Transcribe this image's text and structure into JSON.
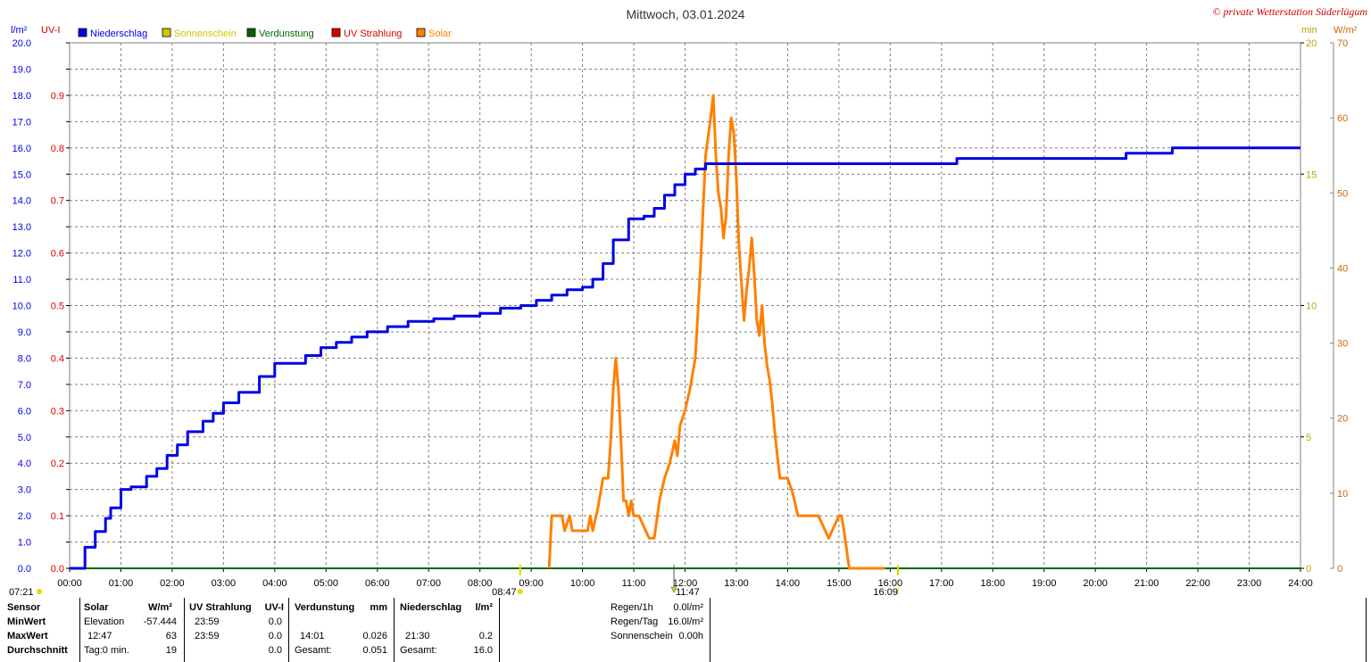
{
  "title": "Mittwoch, 03.01.2024",
  "copyright": "© private Wetterstation Süderlügum",
  "axes": {
    "left1_unit": "l/m²",
    "left2_unit": "UV-I",
    "right1_unit": "min",
    "right2_unit": "W/m²"
  },
  "colors": {
    "niederschlag": "#0000e6",
    "sonnenschein": "#e0d000",
    "verdunstung": "#006600",
    "uv": "#dd0000",
    "solar": "#ff8000",
    "grid": "#808080"
  },
  "legend": [
    {
      "label": "Niederschlag",
      "color": "#0000e6"
    },
    {
      "label": "Sonnenschein",
      "color": "#d4c400"
    },
    {
      "label": "Verdunstung",
      "color": "#006600"
    },
    {
      "label": "UV Strahlung",
      "color": "#dd0000"
    },
    {
      "label": "Solar",
      "color": "#ff8000"
    }
  ],
  "markers": {
    "sunrise": "07:21",
    "sun_start": "08:47",
    "solar_max": "11:47",
    "sun_end": "16:09"
  },
  "chart_data": {
    "type": "line",
    "title": "Mittwoch, 03.01.2024",
    "x_ticks": [
      "00:00",
      "01:00",
      "02:00",
      "03:00",
      "04:00",
      "05:00",
      "06:00",
      "07:00",
      "08:00",
      "09:00",
      "10:00",
      "11:00",
      "12:00",
      "13:00",
      "14:00",
      "15:00",
      "16:00",
      "17:00",
      "18:00",
      "19:00",
      "20:00",
      "21:00",
      "22:00",
      "23:00",
      "24:00"
    ],
    "y_left_ticks": [
      "0.0",
      "1.0",
      "2.0",
      "3.0",
      "4.0",
      "5.0",
      "6.0",
      "7.0",
      "8.0",
      "9.0",
      "10.0",
      "11.0",
      "12.0",
      "13.0",
      "14.0",
      "15.0",
      "16.0",
      "17.0",
      "18.0",
      "19.0",
      "20.0"
    ],
    "y_uv_ticks": [
      "0.0",
      "0.1",
      "0.2",
      "0.3",
      "0.4",
      "0.5",
      "0.6",
      "0.7",
      "0.8",
      "0.9"
    ],
    "y_min_ticks": [
      "0",
      "5",
      "10",
      "15",
      "20"
    ],
    "y_solar_ticks": [
      "0",
      "10",
      "20",
      "30",
      "40",
      "50",
      "60",
      "70"
    ],
    "ylim_left": [
      0,
      20
    ],
    "ylim_uv": [
      0,
      1.0
    ],
    "ylim_min": [
      0,
      20
    ],
    "ylim_solar": [
      0,
      70
    ],
    "grid": true,
    "series": [
      {
        "name": "Niederschlag",
        "axis": "left",
        "x_hours": [
          0,
          0.3,
          0.5,
          0.7,
          0.8,
          1.0,
          1.2,
          1.5,
          1.7,
          1.9,
          2.1,
          2.3,
          2.6,
          2.8,
          3.0,
          3.3,
          3.7,
          4.0,
          4.3,
          4.6,
          4.9,
          5.2,
          5.5,
          5.8,
          6.2,
          6.6,
          7.1,
          7.5,
          8.0,
          8.4,
          8.8,
          9.1,
          9.4,
          9.7,
          10.0,
          10.2,
          10.4,
          10.6,
          10.9,
          11.2,
          11.4,
          11.6,
          11.8,
          12.0,
          12.2,
          12.4,
          13.0,
          14.0,
          15.0,
          16.0,
          17.0,
          17.3,
          18.0,
          19.0,
          20.0,
          20.5,
          20.6,
          21.4,
          21.5,
          22.0,
          23.0,
          24.0
        ],
        "values": [
          0,
          0.8,
          1.4,
          1.9,
          2.3,
          3.0,
          3.1,
          3.5,
          3.8,
          4.3,
          4.7,
          5.2,
          5.6,
          5.9,
          6.3,
          6.7,
          7.3,
          7.8,
          7.8,
          8.1,
          8.4,
          8.6,
          8.8,
          9.0,
          9.2,
          9.4,
          9.5,
          9.6,
          9.7,
          9.9,
          10.0,
          10.2,
          10.4,
          10.6,
          10.7,
          11.0,
          11.6,
          12.5,
          13.3,
          13.4,
          13.7,
          14.2,
          14.6,
          15.0,
          15.2,
          15.4,
          15.4,
          15.4,
          15.4,
          15.4,
          15.4,
          15.6,
          15.6,
          15.6,
          15.6,
          15.6,
          15.8,
          15.8,
          16.0,
          16.0,
          16.0,
          16.0
        ]
      },
      {
        "name": "Solar",
        "axis": "right_wm2",
        "x_hours": [
          9.35,
          9.4,
          9.6,
          9.65,
          9.75,
          9.8,
          9.9,
          9.95,
          10.1,
          10.15,
          10.2,
          10.3,
          10.4,
          10.5,
          10.55,
          10.6,
          10.65,
          10.7,
          10.75,
          10.8,
          10.85,
          10.9,
          10.95,
          11.0,
          11.1,
          11.3,
          11.4,
          11.5,
          11.6,
          11.7,
          11.8,
          11.85,
          11.9,
          12.0,
          12.1,
          12.2,
          12.3,
          12.4,
          12.5,
          12.55,
          12.6,
          12.65,
          12.7,
          12.75,
          12.8,
          12.85,
          12.9,
          12.95,
          13.0,
          13.05,
          13.1,
          13.15,
          13.2,
          13.25,
          13.3,
          13.35,
          13.4,
          13.45,
          13.5,
          13.55,
          13.6,
          13.65,
          13.7,
          13.75,
          13.8,
          13.85,
          13.9,
          14.0,
          14.1,
          14.2,
          14.3,
          14.4,
          14.5,
          14.6,
          14.8,
          15.0,
          15.05,
          15.1,
          15.2,
          15.3,
          15.5,
          15.55,
          15.6,
          15.7,
          15.8,
          15.85,
          15.9
        ],
        "values": [
          0,
          7,
          7,
          5,
          7,
          5,
          5,
          5,
          5,
          7,
          5,
          8,
          12,
          12,
          17,
          24,
          28,
          24,
          17,
          9,
          9,
          7,
          9,
          7,
          7,
          4,
          4,
          9,
          12,
          14,
          17,
          15,
          19,
          21,
          24,
          28,
          40,
          55,
          60,
          63,
          55,
          50,
          48,
          44,
          47,
          55,
          60,
          58,
          52,
          43,
          38,
          33,
          37,
          40,
          44,
          39,
          33,
          31,
          35,
          30,
          27,
          25,
          22,
          18,
          15,
          12,
          12,
          12,
          10,
          7,
          7,
          7,
          7,
          7,
          4,
          7,
          7,
          5,
          0,
          0,
          0,
          0,
          0,
          0,
          0,
          0,
          0
        ]
      },
      {
        "name": "Sonnenschein",
        "axis": "right_min",
        "x_hours": [
          0,
          24
        ],
        "values": [
          0,
          0
        ]
      },
      {
        "name": "Verdunstung",
        "axis": "left",
        "x_hours": [
          0,
          24
        ],
        "values": [
          0,
          0
        ]
      },
      {
        "name": "UV Strahlung",
        "axis": "uv",
        "x_hours": [
          0,
          24
        ],
        "values": [
          0,
          0
        ]
      }
    ]
  },
  "stats": {
    "sensor_label": "Sensor",
    "minwert_label": "MinWert",
    "maxwert_label": "MaxWert",
    "durchschnitt_label": "Durchschnitt",
    "solar": {
      "header": "Solar",
      "unit": "W/m²",
      "min_label": "Elevation",
      "min_value": "-57.444",
      "max_time": "12:47",
      "max_value": "63",
      "avg_label": "Tag:0 min.",
      "avg_value": "19"
    },
    "uv": {
      "header": "UV Strahlung",
      "unit": "UV-I",
      "min_time": "23:59",
      "min_value": "0.0",
      "max_time": "23:59",
      "max_value": "0.0",
      "avg_value": "0.0"
    },
    "verdunstung": {
      "header": "Verdunstung",
      "unit": "mm",
      "max_time": "14:01",
      "max_value": "0.026",
      "total_label": "Gesamt:",
      "total_value": "0.051"
    },
    "niederschlag": {
      "header": "Niederschlag",
      "unit": "l/m²",
      "max_time": "21:30",
      "max_value": "0.2",
      "total_label": "Gesamt:",
      "total_value": "16.0"
    },
    "extra": {
      "regen1h_label": "Regen/1h",
      "regen1h_value": "0.0l/m²",
      "regentag_label": "Regen/Tag",
      "regentag_value": "16.0l/m²",
      "sonne_label": "Sonnenschein",
      "sonne_value": "0.00h"
    }
  }
}
